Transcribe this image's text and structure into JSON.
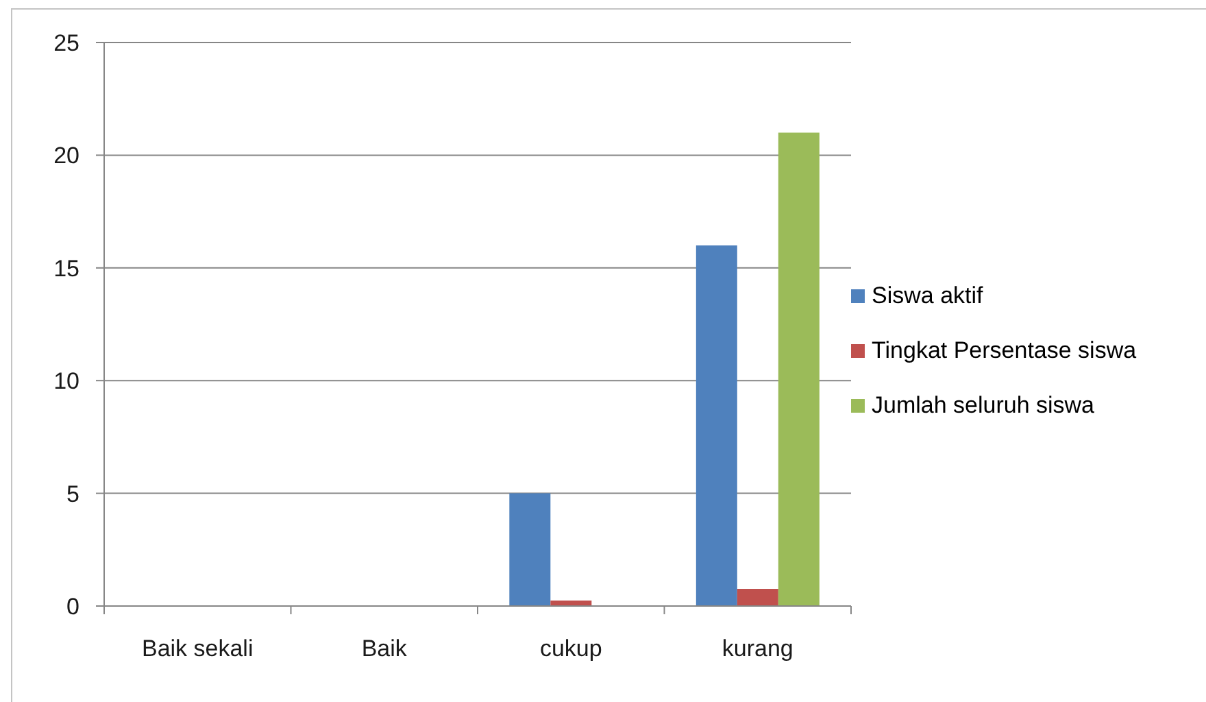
{
  "chart_data": {
    "type": "bar",
    "categories": [
      "Baik sekali",
      "Baik",
      "cukup",
      "kurang"
    ],
    "series": [
      {
        "name": "Siswa aktif",
        "color": "#4f81bd",
        "values": [
          0,
          0,
          5,
          16
        ]
      },
      {
        "name": "Tingkat Persentase siswa",
        "color": "#c0504d",
        "values": [
          0,
          0,
          0.24,
          0.76
        ]
      },
      {
        "name": "Jumlah seluruh siswa",
        "color": "#9bbb59",
        "values": [
          0,
          0,
          0,
          21
        ]
      }
    ],
    "ylim": [
      0,
      25
    ],
    "yticks": [
      0,
      5,
      10,
      15,
      20,
      25
    ],
    "grid": "y",
    "legend": "right"
  }
}
